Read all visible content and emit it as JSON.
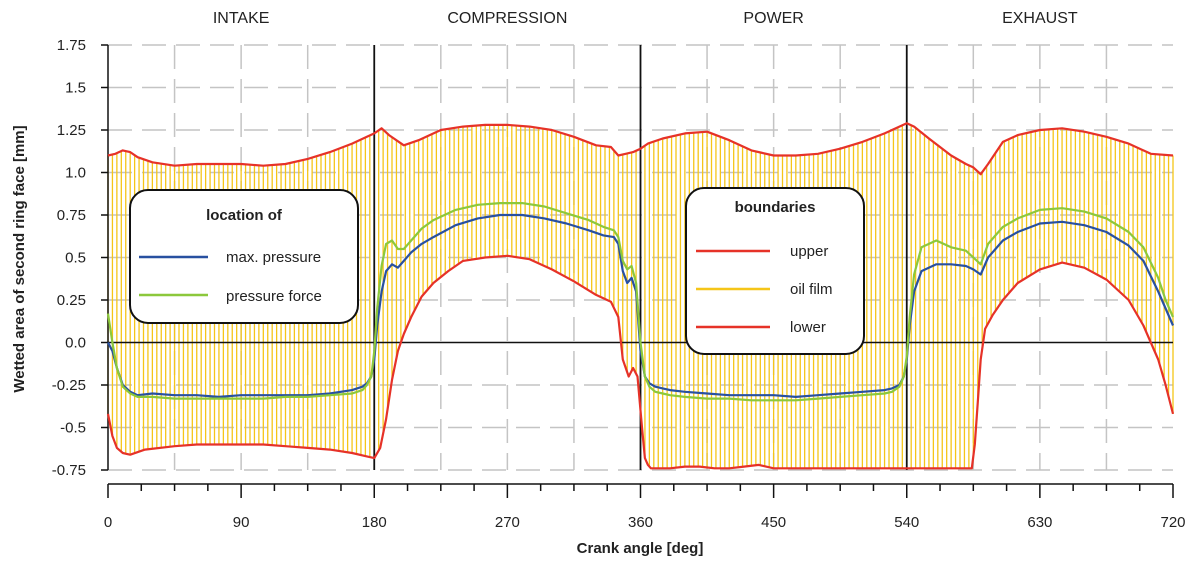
{
  "chart_data": {
    "type": "line",
    "xlabel": "Crank angle [deg]",
    "ylabel": "Wetted area of second ring face [mm]",
    "xlim": [
      0,
      720
    ],
    "ylim": [
      -0.75,
      1.75
    ],
    "x_ticks": [
      0,
      90,
      180,
      270,
      360,
      450,
      540,
      630,
      720
    ],
    "x_tick_labels": [
      "0",
      "90",
      "180",
      "270",
      "360",
      "450",
      "540",
      "630",
      "720"
    ],
    "y_ticks": [
      -0.75,
      -0.5,
      -0.25,
      0,
      0.25,
      0.5,
      0.75,
      1.0,
      1.25,
      1.5,
      1.75
    ],
    "y_tick_labels": [
      "-0.75",
      "-0.5",
      "-0.25",
      "0.0",
      "0.25",
      "0.5",
      "0.75",
      "1.0",
      "1.25",
      "1.5",
      "1.75"
    ],
    "grid": true,
    "phases": [
      {
        "label": "INTAKE",
        "start": 0,
        "end": 180
      },
      {
        "label": "COMPRESSION",
        "start": 180,
        "end": 360
      },
      {
        "label": "POWER",
        "start": 360,
        "end": 540
      },
      {
        "label": "EXHAUST",
        "start": 540,
        "end": 720
      }
    ],
    "series": [
      {
        "name": "upper",
        "color": "#e63228",
        "x": [
          0,
          5,
          10,
          15,
          20,
          30,
          45,
          60,
          75,
          90,
          105,
          120,
          135,
          150,
          165,
          175,
          180,
          185,
          190,
          200,
          210,
          225,
          240,
          255,
          270,
          285,
          300,
          315,
          330,
          340,
          345,
          350,
          355,
          360,
          365,
          375,
          390,
          405,
          420,
          435,
          450,
          465,
          480,
          495,
          510,
          525,
          535,
          540,
          545,
          555,
          570,
          580,
          585,
          590,
          595,
          605,
          615,
          630,
          645,
          660,
          675,
          690,
          705,
          720
        ],
        "y": [
          1.1,
          1.11,
          1.13,
          1.12,
          1.09,
          1.06,
          1.04,
          1.05,
          1.05,
          1.05,
          1.04,
          1.05,
          1.08,
          1.12,
          1.17,
          1.21,
          1.23,
          1.26,
          1.22,
          1.16,
          1.19,
          1.25,
          1.27,
          1.28,
          1.28,
          1.27,
          1.25,
          1.21,
          1.16,
          1.15,
          1.1,
          1.11,
          1.12,
          1.14,
          1.17,
          1.2,
          1.23,
          1.24,
          1.19,
          1.13,
          1.1,
          1.1,
          1.11,
          1.14,
          1.18,
          1.23,
          1.27,
          1.29,
          1.27,
          1.2,
          1.1,
          1.05,
          1.03,
          0.99,
          1.05,
          1.18,
          1.22,
          1.25,
          1.26,
          1.24,
          1.21,
          1.17,
          1.11,
          1.1
        ]
      },
      {
        "name": "lower",
        "color": "#e63228",
        "x": [
          0,
          3,
          6,
          10,
          15,
          25,
          45,
          60,
          75,
          90,
          105,
          120,
          135,
          150,
          165,
          175,
          180,
          184,
          188,
          192,
          196,
          200,
          205,
          212,
          220,
          230,
          240,
          255,
          270,
          285,
          300,
          315,
          330,
          340,
          345,
          348,
          352,
          355,
          358,
          361,
          363,
          365,
          367,
          370,
          380,
          390,
          400,
          410,
          420,
          430,
          440,
          450,
          480,
          510,
          540,
          560,
          575,
          580,
          582,
          584,
          586,
          588,
          590,
          593,
          598,
          605,
          615,
          630,
          645,
          660,
          675,
          690,
          700,
          710,
          715,
          720
        ],
        "y": [
          -0.42,
          -0.55,
          -0.62,
          -0.65,
          -0.66,
          -0.63,
          -0.61,
          -0.6,
          -0.6,
          -0.6,
          -0.6,
          -0.61,
          -0.62,
          -0.63,
          -0.65,
          -0.67,
          -0.68,
          -0.62,
          -0.45,
          -0.22,
          -0.05,
          0.05,
          0.15,
          0.27,
          0.35,
          0.42,
          0.48,
          0.5,
          0.51,
          0.49,
          0.43,
          0.36,
          0.28,
          0.24,
          0.15,
          -0.1,
          -0.2,
          -0.15,
          -0.2,
          -0.5,
          -0.68,
          -0.72,
          -0.74,
          -0.74,
          -0.74,
          -0.73,
          -0.73,
          -0.74,
          -0.74,
          -0.73,
          -0.72,
          -0.74,
          -0.74,
          -0.74,
          -0.74,
          -0.74,
          -0.74,
          -0.74,
          -0.74,
          -0.74,
          -0.6,
          -0.35,
          -0.1,
          0.08,
          0.16,
          0.25,
          0.35,
          0.43,
          0.47,
          0.44,
          0.37,
          0.25,
          0.1,
          -0.1,
          -0.25,
          -0.42
        ]
      },
      {
        "name": "max. pressure",
        "color": "#2850a0",
        "x": [
          0,
          3,
          6,
          10,
          15,
          20,
          30,
          45,
          60,
          75,
          90,
          105,
          120,
          135,
          150,
          165,
          172,
          175,
          178,
          180,
          182,
          185,
          188,
          192,
          196,
          200,
          205,
          212,
          220,
          235,
          250,
          265,
          280,
          295,
          310,
          325,
          335,
          342,
          345,
          348,
          351,
          354,
          357,
          360,
          363,
          366,
          370,
          375,
          380,
          390,
          405,
          420,
          435,
          450,
          465,
          480,
          495,
          510,
          525,
          530,
          535,
          538,
          540,
          542,
          545,
          550,
          560,
          570,
          580,
          585,
          590,
          595,
          605,
          615,
          630,
          645,
          660,
          675,
          690,
          700,
          710,
          715,
          720
        ],
        "y": [
          0.0,
          -0.05,
          -0.15,
          -0.25,
          -0.29,
          -0.31,
          -0.3,
          -0.31,
          -0.31,
          -0.32,
          -0.31,
          -0.31,
          -0.31,
          -0.31,
          -0.3,
          -0.28,
          -0.26,
          -0.24,
          -0.2,
          -0.1,
          0.1,
          0.3,
          0.42,
          0.46,
          0.44,
          0.48,
          0.53,
          0.58,
          0.62,
          0.69,
          0.73,
          0.75,
          0.75,
          0.73,
          0.7,
          0.66,
          0.63,
          0.62,
          0.58,
          0.42,
          0.35,
          0.38,
          0.3,
          -0.05,
          -0.2,
          -0.24,
          -0.26,
          -0.27,
          -0.28,
          -0.29,
          -0.3,
          -0.31,
          -0.31,
          -0.31,
          -0.32,
          -0.31,
          -0.3,
          -0.29,
          -0.28,
          -0.27,
          -0.25,
          -0.2,
          -0.1,
          0.1,
          0.3,
          0.42,
          0.46,
          0.46,
          0.45,
          0.43,
          0.4,
          0.5,
          0.6,
          0.65,
          0.7,
          0.71,
          0.69,
          0.65,
          0.57,
          0.48,
          0.3,
          0.2,
          0.1
        ]
      },
      {
        "name": "pressure force",
        "color": "#8cc83c",
        "x": [
          0,
          3,
          6,
          10,
          15,
          20,
          30,
          45,
          60,
          75,
          90,
          105,
          120,
          135,
          150,
          165,
          172,
          175,
          178,
          180,
          182,
          185,
          188,
          192,
          196,
          200,
          205,
          212,
          220,
          235,
          250,
          265,
          280,
          295,
          310,
          325,
          335,
          342,
          345,
          348,
          351,
          354,
          357,
          360,
          363,
          366,
          370,
          375,
          380,
          390,
          405,
          420,
          435,
          450,
          465,
          480,
          495,
          510,
          525,
          530,
          535,
          538,
          540,
          542,
          545,
          550,
          560,
          570,
          580,
          585,
          590,
          595,
          605,
          615,
          630,
          645,
          660,
          675,
          690,
          700,
          710,
          715,
          720
        ],
        "y": [
          0.17,
          0.0,
          -0.15,
          -0.26,
          -0.3,
          -0.32,
          -0.32,
          -0.33,
          -0.33,
          -0.33,
          -0.33,
          -0.33,
          -0.32,
          -0.32,
          -0.31,
          -0.3,
          -0.28,
          -0.25,
          -0.2,
          -0.05,
          0.2,
          0.45,
          0.58,
          0.6,
          0.55,
          0.55,
          0.6,
          0.67,
          0.72,
          0.78,
          0.81,
          0.82,
          0.82,
          0.8,
          0.76,
          0.72,
          0.68,
          0.66,
          0.62,
          0.48,
          0.43,
          0.45,
          0.35,
          0.0,
          -0.2,
          -0.26,
          -0.29,
          -0.3,
          -0.31,
          -0.32,
          -0.33,
          -0.33,
          -0.34,
          -0.34,
          -0.34,
          -0.33,
          -0.32,
          -0.31,
          -0.3,
          -0.29,
          -0.26,
          -0.2,
          -0.08,
          0.15,
          0.4,
          0.56,
          0.6,
          0.56,
          0.54,
          0.5,
          0.46,
          0.58,
          0.68,
          0.73,
          0.78,
          0.79,
          0.77,
          0.73,
          0.65,
          0.56,
          0.38,
          0.25,
          0.15
        ]
      }
    ],
    "fill": {
      "name": "oil film",
      "color": "#f5c518",
      "between": [
        "lower",
        "upper"
      ]
    },
    "legends": [
      {
        "title": "location of",
        "entries": [
          "max. pressure",
          "pressure force"
        ]
      },
      {
        "title": "boundaries",
        "entries": [
          "upper",
          "oil film",
          "lower"
        ]
      }
    ]
  }
}
